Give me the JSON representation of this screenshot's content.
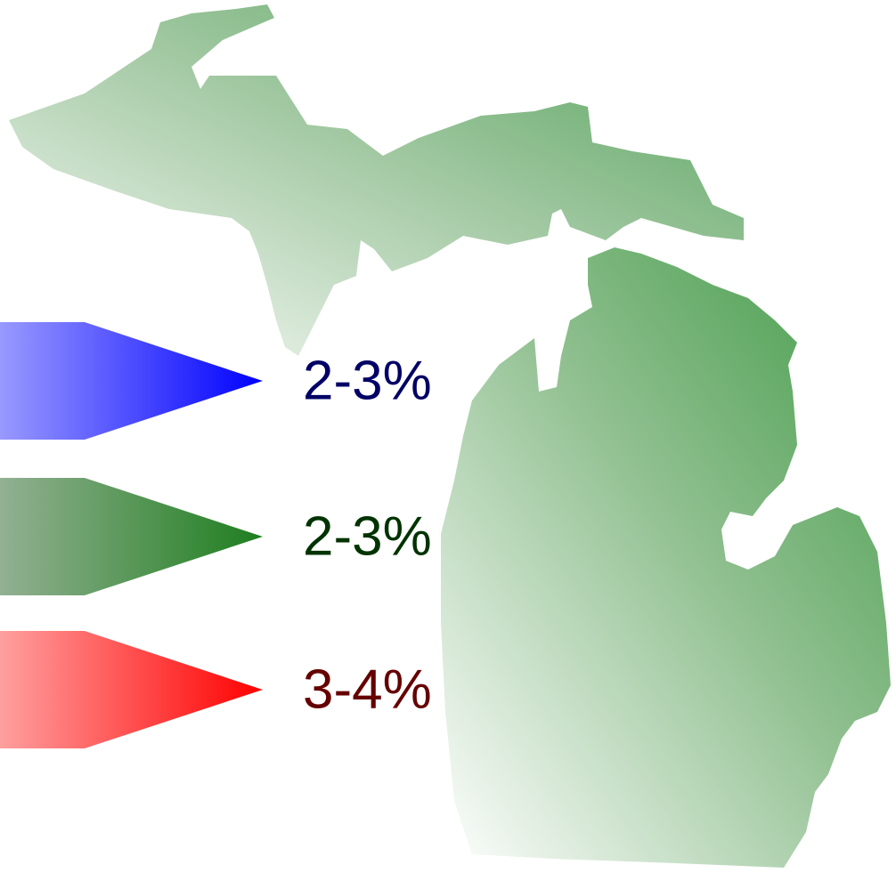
{
  "labels": [
    {
      "text": "2-3%"
    },
    {
      "text": "2-3%"
    },
    {
      "text": "3-4%"
    }
  ]
}
